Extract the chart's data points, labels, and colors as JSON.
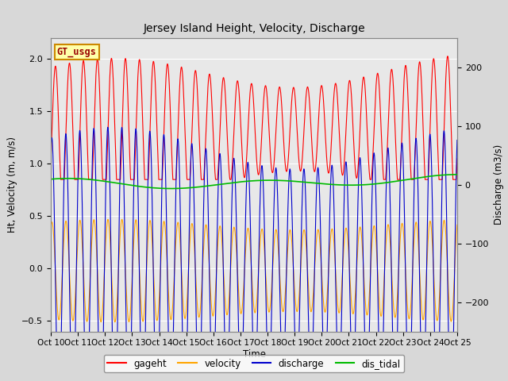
{
  "title": "Jersey Island Height, Velocity, Discharge",
  "xlabel": "Time",
  "ylabel_left": "Ht, Velocity (m, m/s)",
  "ylabel_right": "Discharge (m3/s)",
  "ylim_left": [
    -0.6,
    2.2
  ],
  "ylim_right": [
    -250,
    250
  ],
  "xtick_labels": [
    "Oct 10",
    "Oct 11",
    "Oct 12",
    "Oct 13",
    "Oct 14",
    "Oct 15",
    "Oct 16",
    "Oct 17",
    "Oct 18",
    "Oct 19",
    "Oct 20",
    "Oct 21",
    "Oct 22",
    "Oct 23",
    "Oct 24",
    "Oct 25"
  ],
  "legend_entries": [
    "gageht",
    "velocity",
    "discharge",
    "dis_tidal"
  ],
  "color_gageht": "#ff0000",
  "color_velocity": "#ffa500",
  "color_discharge": "#0000cc",
  "color_dis_tidal": "#00bb00",
  "color_gt_usgs_bg": "#ffffaa",
  "color_gt_usgs_border": "#cc8800",
  "color_gt_usgs_text": "#990000",
  "background_color": "#d8d8d8",
  "plot_bg_color": "#e8e8e8",
  "grid_color": "#ffffff",
  "n_days": 15,
  "dt": 0.003
}
